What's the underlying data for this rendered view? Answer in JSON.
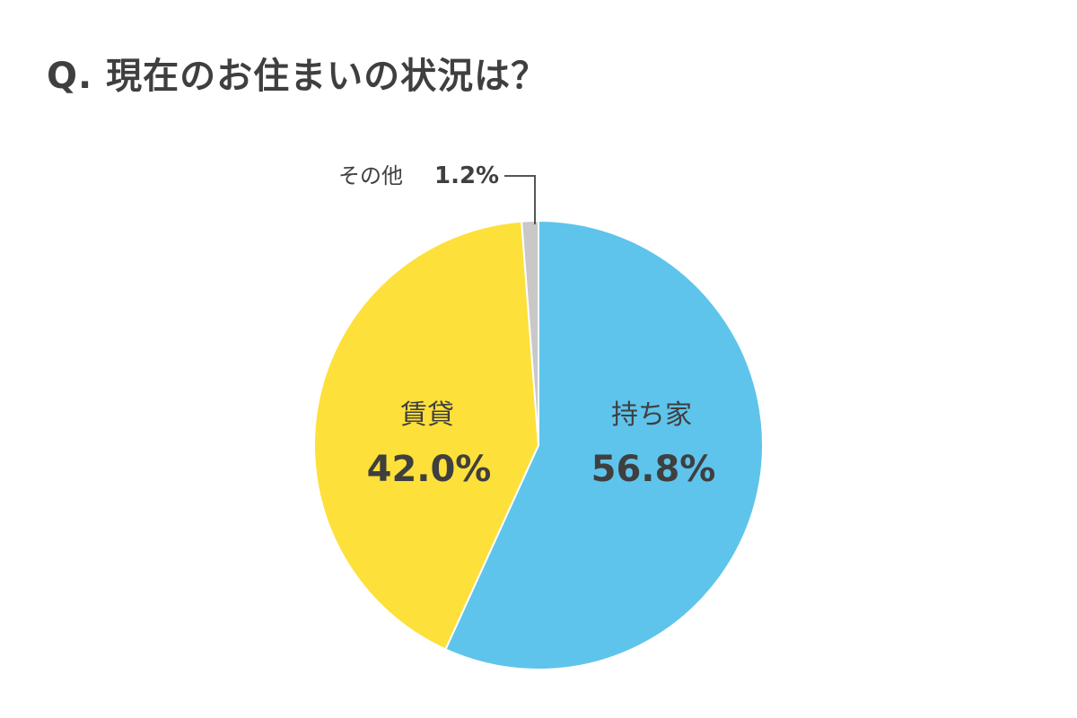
{
  "title": "Q. 現在のお住まいの状況は？",
  "chart_data": {
    "type": "pie",
    "title": "Q. 現在のお住まいの状況は？",
    "slices": [
      {
        "label": "持ち家",
        "value": 56.8,
        "value_label": "56.8%",
        "color": "#5ec4ec"
      },
      {
        "label": "賃貸",
        "value": 42.0,
        "value_label": "42.0%",
        "color": "#fde03a"
      },
      {
        "label": "その他",
        "value": 1.2,
        "value_label": "1.2%",
        "color": "#c8c8c8"
      }
    ],
    "start": "top",
    "direction": "clockwise"
  }
}
